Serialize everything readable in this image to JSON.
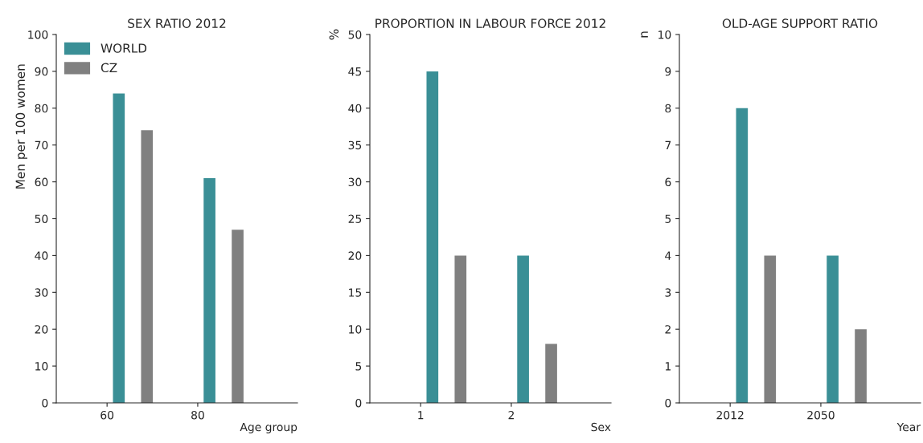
{
  "chart_data": [
    {
      "type": "bar",
      "title": "SEX RATIO 2012",
      "xlabel": "Age group",
      "ylabel": "Men per 100 women",
      "categories": [
        "60",
        "80"
      ],
      "series": [
        {
          "name": "WORLD",
          "color": "#3a8f96",
          "values": [
            84,
            61
          ]
        },
        {
          "name": "CZ",
          "color": "#808080",
          "values": [
            74,
            47
          ]
        }
      ],
      "ylim": [
        0,
        100
      ],
      "yticks": [
        0,
        10,
        20,
        30,
        40,
        50,
        60,
        70,
        80,
        90,
        100
      ],
      "legend": "top left",
      "grid": false
    },
    {
      "type": "bar",
      "title": "PROPORTION IN LABOUR FORCE 2012",
      "xlabel": "Sex",
      "ylabel": "%",
      "categories": [
        "1",
        "2"
      ],
      "series": [
        {
          "color": "#3a8f96",
          "values": [
            45,
            20
          ]
        },
        {
          "color": "#808080",
          "values": [
            20,
            8
          ]
        }
      ],
      "ylim": [
        0,
        50
      ],
      "yticks": [
        0,
        5,
        10,
        15,
        20,
        25,
        30,
        35,
        40,
        45,
        50
      ],
      "grid": false
    },
    {
      "type": "bar",
      "title": "OLD-AGE SUPPORT RATIO",
      "xlabel": "Year",
      "ylabel": "n",
      "categories": [
        "2012",
        "2050"
      ],
      "series": [
        {
          "color": "#3a8f96",
          "values": [
            8,
            4
          ]
        },
        {
          "color": "#808080",
          "values": [
            4,
            2
          ]
        }
      ],
      "ylim": [
        0,
        10
      ],
      "yticks": [
        0,
        1,
        2,
        3,
        4,
        5,
        6,
        7,
        8,
        9,
        10
      ],
      "grid": false
    }
  ]
}
